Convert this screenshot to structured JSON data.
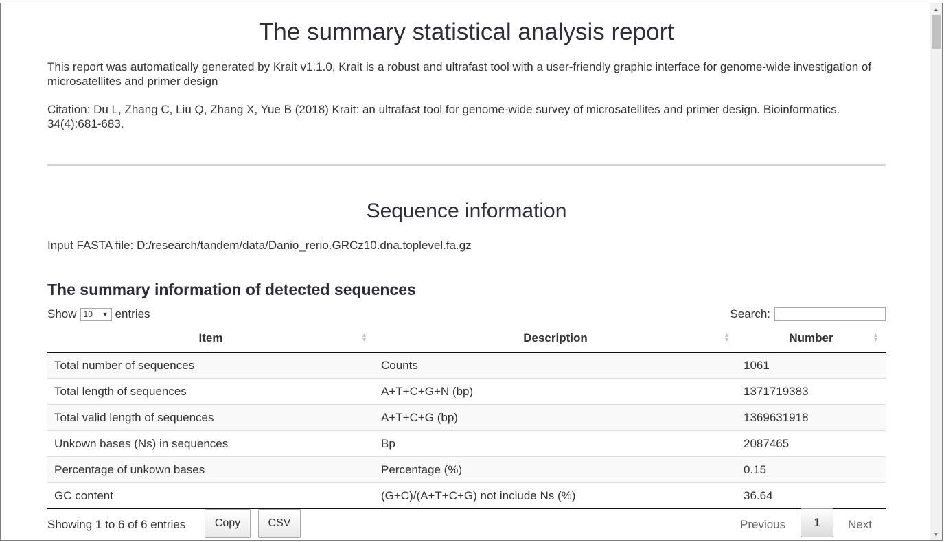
{
  "report": {
    "title": "The summary statistical analysis report",
    "intro": "This report was automatically generated by Krait v1.1.0, Krait is a robust and ultrafast tool with a user-friendly graphic interface for genome-wide investigation of microsatellites and primer design",
    "citation": "Citation: Du L, Zhang C, Liu Q, Zhang X, Yue B (2018) Krait: an ultrafast tool for genome-wide survey of microsatellites and primer design. Bioinformatics. 34(4):681-683."
  },
  "section": {
    "title": "Sequence information",
    "fasta_file": "Input FASTA file: D:/research/tandem/data/Danio_rerio.GRCz10.dna.toplevel.fa.gz"
  },
  "table": {
    "title": "The summary information of detected sequences",
    "show_label": "Show",
    "page_size": "10",
    "entries_label": "entries",
    "search_label": "Search:",
    "search_value": "",
    "columns": [
      "Item",
      "Description",
      "Number"
    ],
    "rows": [
      [
        "Total number of sequences",
        "Counts",
        "1061"
      ],
      [
        "Total length of sequences",
        "A+T+C+G+N (bp)",
        "1371719383"
      ],
      [
        "Total valid length of sequences",
        "A+T+C+G (bp)",
        "1369631918"
      ],
      [
        "Unkown bases (Ns) in sequences",
        "Bp",
        "2087465"
      ],
      [
        "Percentage of unkown bases",
        "Percentage (%)",
        "0.15"
      ],
      [
        "GC content",
        "(G+C)/(A+T+C+G) not include Ns (%)",
        "36.64"
      ]
    ],
    "info": "Showing 1 to 6 of 6 entries",
    "buttons": {
      "copy": "Copy",
      "csv": "CSV"
    },
    "pager": {
      "previous": "Previous",
      "page": "1",
      "next": "Next"
    }
  },
  "icons": {
    "sort": "sort-icon",
    "dropdown": "caret-down-icon",
    "scroll_up": "arrow-up-icon",
    "scroll_down": "arrow-down-icon"
  }
}
